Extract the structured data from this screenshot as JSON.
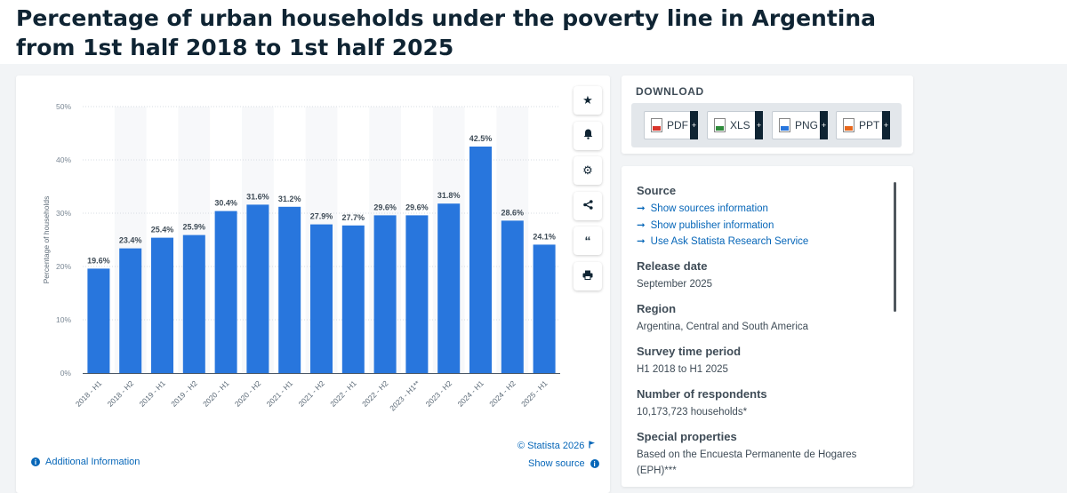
{
  "title": "Percentage of urban households under the poverty line in Argentina from 1st half 2018 to 1st half 2025",
  "chart_data": {
    "type": "bar",
    "categories": [
      "2018 - H1",
      "2018 - H2",
      "2019 - H1",
      "2019 - H2",
      "2020 - H1",
      "2020 - H2",
      "2021 - H1",
      "2021 - H2",
      "2022 - H1",
      "2022 - H2",
      "2023 - H1**",
      "2023 - H2",
      "2024 - H1",
      "2024 - H2",
      "2025 - H1"
    ],
    "values": [
      19.6,
      23.4,
      25.4,
      25.9,
      30.4,
      31.6,
      31.2,
      27.9,
      27.7,
      29.6,
      29.6,
      31.8,
      42.5,
      28.6,
      24.1
    ],
    "value_labels": [
      "19.6%",
      "23.4%",
      "25.4%",
      "25.9%",
      "30.4%",
      "31.6%",
      "31.2%",
      "27.9%",
      "27.7%",
      "29.6%",
      "29.6%",
      "31.8%",
      "42.5%",
      "28.6%",
      "24.1%"
    ],
    "yticks": [
      0,
      10,
      20,
      30,
      40,
      50
    ],
    "ytick_labels": [
      "0%",
      "10%",
      "20%",
      "30%",
      "40%",
      "50%"
    ],
    "ylim": [
      0,
      50
    ],
    "xlabel": "",
    "ylabel": "Percentage of households",
    "bar_color": "#2876dd",
    "grid": true
  },
  "footer": {
    "additional_info": "Additional Information",
    "credit": "© Statista 2026",
    "show_source": "Show source"
  },
  "tools": [
    "star-icon",
    "bell-icon",
    "gear-icon",
    "share-icon",
    "quote-icon",
    "print-icon"
  ],
  "download": {
    "title": "DOWNLOAD",
    "buttons": [
      {
        "label": "PDF",
        "color": "#d9342b"
      },
      {
        "label": "XLS",
        "color": "#2e8b3a"
      },
      {
        "label": "PNG",
        "color": "#2876dd"
      },
      {
        "label": "PPT",
        "color": "#e8671c"
      }
    ]
  },
  "meta": {
    "source_heading": "Source",
    "source_links": [
      "Show sources information",
      "Show publisher information",
      "Use Ask Statista Research Service"
    ],
    "release_heading": "Release date",
    "release_value": "September 2025",
    "region_heading": "Region",
    "region_value": "Argentina, Central and South America",
    "survey_heading": "Survey time period",
    "survey_value": "H1 2018 to H1 2025",
    "respondents_heading": "Number of respondents",
    "respondents_value": "10,173,723 households*",
    "special_heading": "Special properties",
    "special_value": "Based on the Encuesta Permanente de Hogares (EPH)***"
  }
}
